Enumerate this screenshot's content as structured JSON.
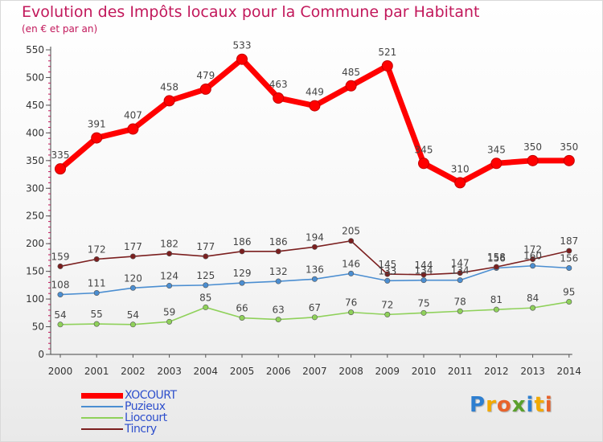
{
  "chart": {
    "title": "Evolution des Impôts locaux pour la Commune par Habitant",
    "subtitle": "(en € et par an)",
    "logo": [
      "P",
      "r",
      "o",
      "x",
      "i",
      "t",
      "i"
    ],
    "logo_colors": [
      "#2e7fd0",
      "#f2a900",
      "#e8632b",
      "#5aa02c",
      "#2e7fd0",
      "#f2a900",
      "#e8632b"
    ]
  },
  "chart_data": {
    "type": "line",
    "x": [
      "2000",
      "2001",
      "2002",
      "2003",
      "2004",
      "2005",
      "2006",
      "2007",
      "2008",
      "2009",
      "2010",
      "2011",
      "2012",
      "2013",
      "2014"
    ],
    "ylim": [
      0,
      550
    ],
    "yticks": [
      0,
      50,
      100,
      150,
      200,
      250,
      300,
      350,
      400,
      450,
      500,
      550
    ],
    "grid": false,
    "legend_position": "bottom-left",
    "series": [
      {
        "name": "XOCOURT",
        "color": "#ff0000",
        "values": [
          335,
          391,
          407,
          458,
          479,
          533,
          463,
          449,
          485,
          521,
          345,
          310,
          345,
          350,
          350
        ]
      },
      {
        "name": "Puzieux",
        "color": "#4b8ed1",
        "values": [
          108,
          111,
          120,
          124,
          125,
          129,
          132,
          136,
          146,
          133,
          134,
          134,
          156,
          160,
          156
        ]
      },
      {
        "name": "Liocourt",
        "color": "#8fd15a",
        "values": [
          54,
          55,
          54,
          59,
          85,
          66,
          63,
          67,
          76,
          72,
          75,
          78,
          81,
          84,
          95
        ]
      },
      {
        "name": "Tincry",
        "color": "#7b1f1f",
        "values": [
          159,
          172,
          177,
          182,
          177,
          186,
          186,
          194,
          205,
          145,
          144,
          147,
          158,
          172,
          187
        ]
      }
    ]
  }
}
